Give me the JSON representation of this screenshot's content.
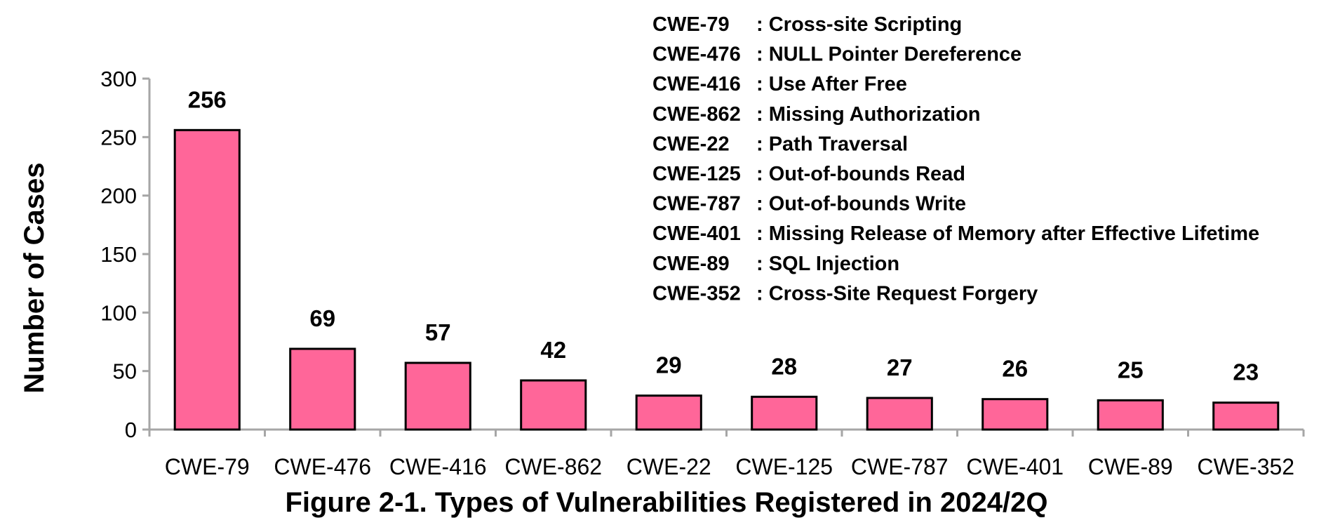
{
  "chart_data": {
    "type": "bar",
    "title": "Figure 2-1. Types of Vulnerabilities Registered in 2024/2Q",
    "xlabel": "",
    "ylabel": "Number of Cases",
    "ylim": [
      0,
      300
    ],
    "yticks": [
      0,
      50,
      100,
      150,
      200,
      250,
      300
    ],
    "grid": false,
    "categories": [
      "CWE-79",
      "CWE-476",
      "CWE-416",
      "CWE-862",
      "CWE-22",
      "CWE-125",
      "CWE-787",
      "CWE-401",
      "CWE-89",
      "CWE-352"
    ],
    "values": [
      256,
      69,
      57,
      42,
      29,
      28,
      27,
      26,
      25,
      23
    ],
    "bar_color": "#ff6699",
    "bar_edge_color": "#000000",
    "axis_color": "#a6a6a6",
    "legend": [
      {
        "code": "CWE-79",
        "desc": ": Cross-site Scripting"
      },
      {
        "code": "CWE-476",
        "desc": ": NULL Pointer Dereference"
      },
      {
        "code": "CWE-416",
        "desc": ": Use After Free"
      },
      {
        "code": "CWE-862",
        "desc": ": Missing Authorization"
      },
      {
        "code": "CWE-22",
        "desc": ": Path Traversal"
      },
      {
        "code": "CWE-125",
        "desc": ": Out-of-bounds Read"
      },
      {
        "code": "CWE-787",
        "desc": ": Out-of-bounds Write"
      },
      {
        "code": "CWE-401",
        "desc": ": Missing Release of Memory after Effective Lifetime"
      },
      {
        "code": "CWE-89",
        "desc": ": SQL Injection"
      },
      {
        "code": "CWE-352",
        "desc": ": Cross-Site Request Forgery"
      }
    ],
    "legend_position": "top-right"
  }
}
